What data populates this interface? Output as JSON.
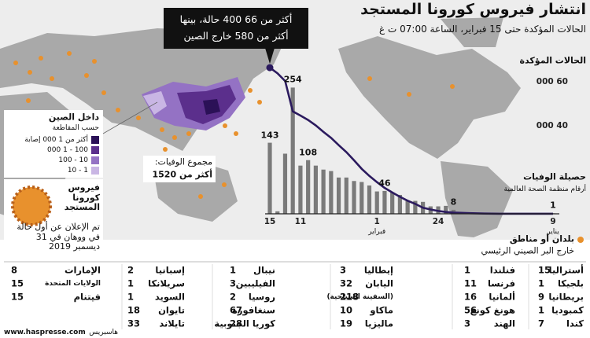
{
  "header": {
    "title": "انتشار فيروس كورونا المستجد",
    "subtitle": "الحالات المؤكدة حتى 15 فبراير، الساعة 07:00 ت غ"
  },
  "callout": [
    "أكثر من 66 400 حالة، بينها",
    "أكثر من 580 خارج الصين"
  ],
  "chart_data": {
    "type": "bar-line",
    "categories": [
      "9",
      null,
      null,
      null,
      null,
      null,
      null,
      null,
      null,
      null,
      null,
      null,
      null,
      null,
      null,
      "24",
      null,
      null,
      null,
      null,
      null,
      null,
      null,
      "1",
      null,
      null,
      null,
      null,
      null,
      null,
      null,
      null,
      null,
      "11",
      null,
      null,
      null,
      "15"
    ],
    "category_months": [
      "يناير",
      null,
      null,
      null,
      null,
      null,
      null,
      null,
      null,
      null,
      null,
      null,
      null,
      null,
      null,
      null,
      null,
      null,
      null,
      null,
      null,
      null,
      null,
      "فبراير",
      null,
      null,
      null,
      null,
      null,
      null,
      null,
      null,
      null,
      null,
      null,
      null,
      null,
      null
    ],
    "y_label": [
      "حصيلة الوفيات",
      "أرقام منظمة الصحة العالمية"
    ],
    "y2_label": "الحالات المؤكدة",
    "ylim": [
      0,
      310
    ],
    "y2lim": [
      0,
      70000
    ],
    "y2ticks": [
      {
        "value": 40000,
        "label": "40 000"
      },
      {
        "value": 60000,
        "label": "60 000"
      }
    ],
    "series": [
      {
        "name": "حصيلة الوفيات",
        "color": "#7a7a7a",
        "axis": "y",
        "values": [
          1,
          0,
          0,
          0,
          0,
          0,
          0,
          1,
          0,
          1,
          0,
          3,
          3,
          8,
          16,
          15,
          15,
          24,
          26,
          26,
          38,
          43,
          46,
          45,
          57,
          64,
          66,
          73,
          73,
          86,
          89,
          97,
          108,
          97,
          254,
          121,
          5,
          143
        ],
        "value_labels": [
          "1",
          null,
          null,
          null,
          null,
          null,
          null,
          null,
          null,
          null,
          null,
          null,
          null,
          "8",
          null,
          null,
          null,
          null,
          null,
          null,
          null,
          null,
          "46",
          null,
          null,
          null,
          null,
          null,
          null,
          null,
          null,
          null,
          "108",
          null,
          "254",
          null,
          null,
          "143"
        ]
      },
      {
        "name": "الحالات المؤكدة",
        "color": "#2b1a5e",
        "axis": "y2",
        "values": [
          41,
          41,
          41,
          41,
          41,
          41,
          41,
          45,
          62,
          121,
          198,
          291,
          440,
          571,
          830,
          1287,
          1975,
          2744,
          4515,
          5974,
          7711,
          9692,
          11791,
          14380,
          17205,
          20438,
          24324,
          28018,
          31161,
          34546,
          37198,
          40171,
          42638,
          44653,
          46550,
          60331,
          63851,
          66400
        ]
      }
    ]
  },
  "total_deaths": [
    "مجموع الوفيات:",
    "أكثر من 1520"
  ],
  "china_legend": {
    "title": "داخل الصين",
    "subtitle": "حسب المقاطعة",
    "items": [
      {
        "label": "أكثر من 1 000 إصابة",
        "color": "#2b1157"
      },
      {
        "label": "100 - 1 000",
        "color": "#5b2f8c"
      },
      {
        "label": "10 - 100",
        "color": "#9472c4"
      },
      {
        "label": "1 - 10",
        "color": "#c9b6e4"
      }
    ]
  },
  "virus_box": {
    "title": "فيروس كورونا المستجد",
    "text": "تم الإعلان عن أول حالة في ووهان في 31 ديسمبر 2019"
  },
  "outside_legend": {
    "title": "بلدان أو مناطق",
    "text": "خارج البر الصيني الرئيسي",
    "color": "#e8912d"
  },
  "table": {
    "columns": [
      [
        {
          "name": "أستراليا",
          "count": 15
        },
        {
          "name": "بلجيكا",
          "count": 1
        },
        {
          "name": "بريطانيا",
          "count": 9
        },
        {
          "name": "كمبوديا",
          "count": 1
        },
        {
          "name": "كندا",
          "count": 7
        }
      ],
      [
        {
          "name": "فنلندا",
          "count": 1
        },
        {
          "name": "فرنسا",
          "count": 11
        },
        {
          "name": "ألمانيا",
          "count": 16
        },
        {
          "name": "هونغ كونغ",
          "count": 56
        },
        {
          "name": "الهند",
          "count": 3
        }
      ],
      [
        {
          "name": "إيطاليا",
          "count": 3
        },
        {
          "name": "اليابان",
          "count": 32
        },
        {
          "name": "(السفينة السياحية)",
          "count": 218
        },
        {
          "name": "ماكاو",
          "count": 10
        },
        {
          "name": "ماليزيا",
          "count": 19
        }
      ],
      [
        {
          "name": "نيبال",
          "count": 1
        },
        {
          "name": "الفيليبين",
          "count": 3
        },
        {
          "name": "روسيا",
          "count": 2
        },
        {
          "name": "سنغافورة",
          "count": 67
        },
        {
          "name": "كوريا الجنوبية",
          "count": 28
        }
      ],
      [
        {
          "name": "إسبانيا",
          "count": 2
        },
        {
          "name": "سريلانكا",
          "count": 1
        },
        {
          "name": "السويد",
          "count": 1
        },
        {
          "name": "تايوان",
          "count": 18
        },
        {
          "name": "تايلاند",
          "count": 33
        }
      ],
      [
        {
          "name": "الإمارات",
          "count": 8
        },
        {
          "name": "الولايات المتحدة",
          "count": 15
        },
        {
          "name": "فيتنام",
          "count": 15
        }
      ]
    ]
  },
  "footer": {
    "url": "www.haspresse.com",
    "source": "هاسبريس"
  }
}
